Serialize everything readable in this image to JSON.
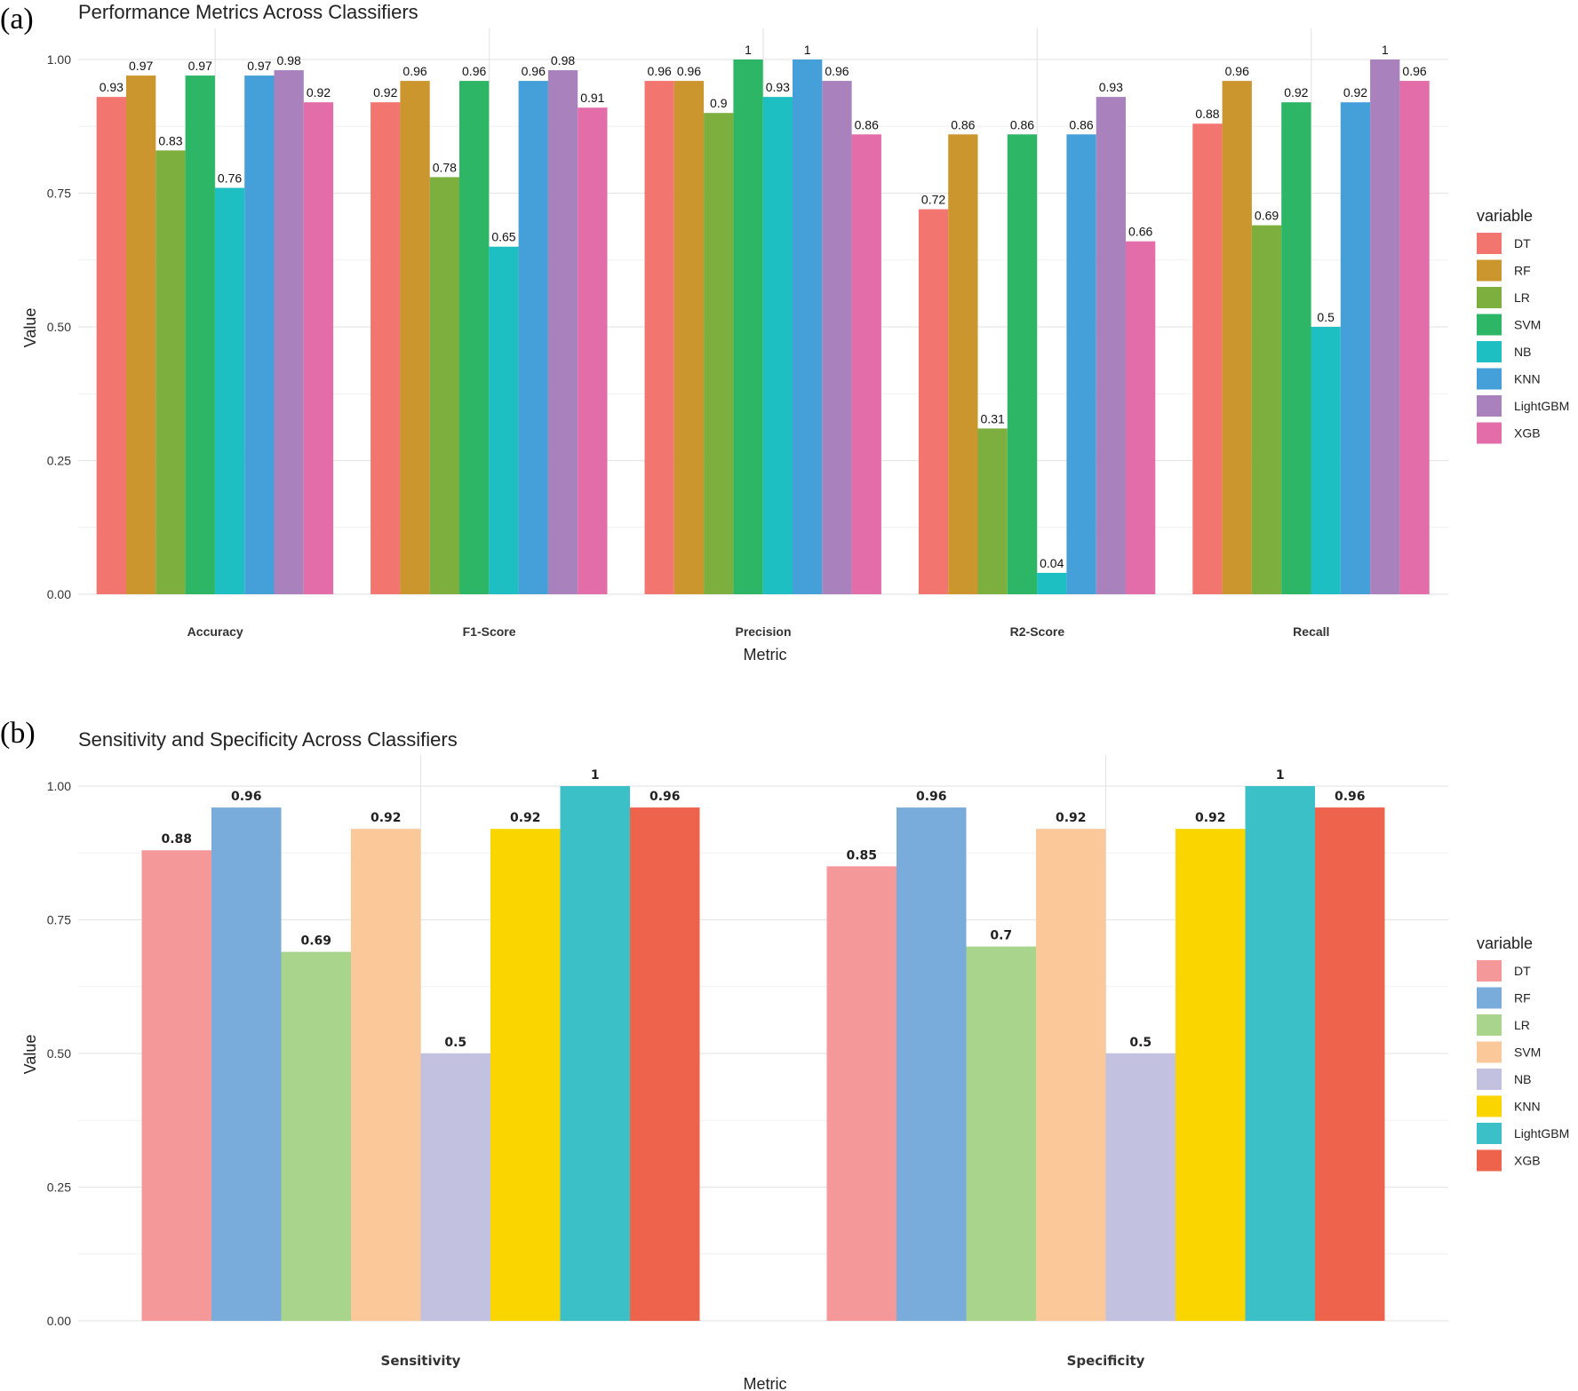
{
  "chart_data": [
    {
      "panel": "(a)",
      "type": "bar",
      "title": "Performance Metrics Across Classifiers",
      "xlabel": "Metric",
      "ylabel": "Value",
      "ylim": [
        0,
        1
      ],
      "yticks": [
        "0.00",
        "0.25",
        "0.50",
        "0.75",
        "1.00"
      ],
      "categories": [
        "Accuracy",
        "F1-Score",
        "Precision",
        "R2-Score",
        "Recall"
      ],
      "legend_title": "variable",
      "legend_position": "right",
      "series": [
        {
          "name": "DT",
          "color": "#F27570",
          "values": [
            0.93,
            0.92,
            0.96,
            0.72,
            0.88
          ],
          "labels": [
            "0.93",
            "0.92",
            "0.96",
            "0.72",
            "0.88"
          ]
        },
        {
          "name": "RF",
          "color": "#CC962E",
          "values": [
            0.97,
            0.96,
            0.96,
            0.86,
            0.96
          ],
          "labels": [
            "0.97",
            "0.96",
            "0.96",
            "0.86",
            "0.96"
          ]
        },
        {
          "name": "LR",
          "color": "#7DAF3F",
          "values": [
            0.83,
            0.78,
            0.9,
            0.31,
            0.69
          ],
          "labels": [
            "0.83",
            "0.78",
            "0.9",
            "0.31",
            "0.69"
          ]
        },
        {
          "name": "SVM",
          "color": "#2DB666",
          "values": [
            0.97,
            0.96,
            1.0,
            0.86,
            0.92
          ],
          "labels": [
            "0.97",
            "0.96",
            "1",
            "0.86",
            "0.92"
          ]
        },
        {
          "name": "NB",
          "color": "#1DBFC2",
          "values": [
            0.76,
            0.65,
            0.93,
            0.04,
            0.5
          ],
          "labels": [
            "0.76",
            "0.65",
            "0.93",
            "0.04",
            "0.5"
          ]
        },
        {
          "name": "KNN",
          "color": "#45A0DA",
          "values": [
            0.97,
            0.96,
            1.0,
            0.86,
            0.92
          ],
          "labels": [
            "0.97",
            "0.96",
            "1",
            "0.86",
            "0.92"
          ]
        },
        {
          "name": "LightGBM",
          "color": "#A981BD",
          "values": [
            0.98,
            0.98,
            0.96,
            0.93,
            1.0
          ],
          "labels": [
            "0.98",
            "0.98",
            "0.96",
            "0.93",
            "1"
          ]
        },
        {
          "name": "XGB",
          "color": "#E26DA8",
          "values": [
            0.92,
            0.91,
            0.86,
            0.66,
            0.96
          ],
          "labels": [
            "0.92",
            "0.91",
            "0.86",
            "0.66",
            "0.96"
          ]
        }
      ]
    },
    {
      "panel": "(b)",
      "type": "bar",
      "title": "Sensitivity and Specificity Across Classifiers",
      "xlabel": "Metric",
      "ylabel": "Value",
      "ylim": [
        0,
        1
      ],
      "yticks": [
        "0.00",
        "0.25",
        "0.50",
        "0.75",
        "1.00"
      ],
      "categories": [
        "Sensitivity",
        "Specificity"
      ],
      "legend_title": "variable",
      "legend_position": "right",
      "series": [
        {
          "name": "DT",
          "color": "#F49899",
          "values": [
            0.88,
            0.85
          ],
          "labels": [
            "0.88",
            "0.85"
          ]
        },
        {
          "name": "RF",
          "color": "#79ABDB",
          "values": [
            0.96,
            0.96
          ],
          "labels": [
            "0.96",
            "0.96"
          ]
        },
        {
          "name": "LR",
          "color": "#A9D48B",
          "values": [
            0.69,
            0.7
          ],
          "labels": [
            "0.69",
            "0.7"
          ]
        },
        {
          "name": "SVM",
          "color": "#FBC899",
          "values": [
            0.92,
            0.92
          ],
          "labels": [
            "0.92",
            "0.92"
          ]
        },
        {
          "name": "NB",
          "color": "#C2C1E0",
          "values": [
            0.5,
            0.5
          ],
          "labels": [
            "0.5",
            "0.5"
          ]
        },
        {
          "name": "KNN",
          "color": "#FAD500",
          "values": [
            0.92,
            0.92
          ],
          "labels": [
            "0.92",
            "0.92"
          ]
        },
        {
          "name": "LightGBM",
          "color": "#3CC0C7",
          "values": [
            1.0,
            1.0
          ],
          "labels": [
            "1",
            "1"
          ]
        },
        {
          "name": "XGB",
          "color": "#EE634C",
          "values": [
            0.96,
            0.96
          ],
          "labels": [
            "0.96",
            "0.96"
          ]
        }
      ]
    }
  ]
}
